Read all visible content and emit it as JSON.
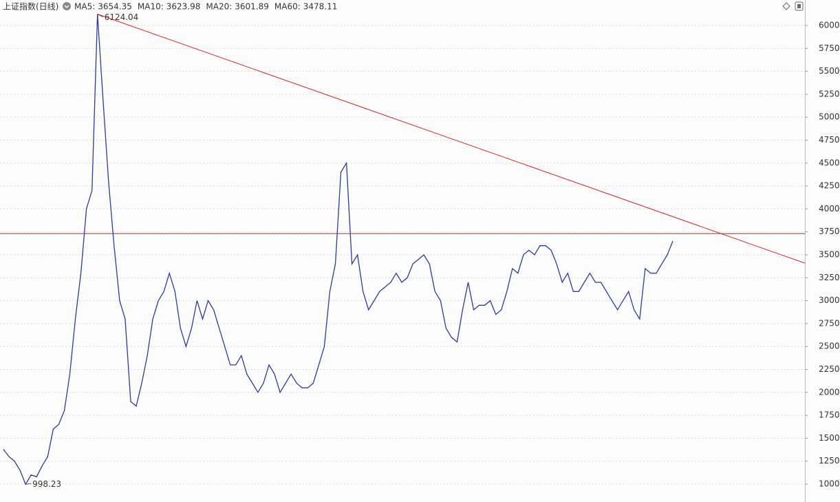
{
  "chart_data": {
    "type": "line",
    "title": "上证指数(日线)",
    "indicators": [
      {
        "name": "MA5:",
        "value": 3654.35,
        "color": "#333333"
      },
      {
        "name": "MA10:",
        "value": 3623.98,
        "color": "#1e7fc0"
      },
      {
        "name": "MA20:",
        "value": 3601.89,
        "color": "#9c1f96"
      },
      {
        "name": "MA60:",
        "value": 3478.11,
        "color": "#888888"
      }
    ],
    "series": [
      {
        "color": "#2b3a9a",
        "values": [
          1380,
          1300,
          1250,
          1150,
          998.23,
          1100,
          1080,
          1200,
          1300,
          1600,
          1650,
          1800,
          2200,
          2800,
          3300,
          4000,
          4200,
          6124.04,
          5200,
          4300,
          3600,
          3000,
          2800,
          1900,
          1850,
          2100,
          2400,
          2800,
          3000,
          3100,
          3300,
          3100,
          2700,
          2500,
          2700,
          3000,
          2800,
          3000,
          2900,
          2700,
          2500,
          2300,
          2300,
          2400,
          2200,
          2100,
          2000,
          2100,
          2300,
          2200,
          2000,
          2100,
          2200,
          2100,
          2050,
          2050,
          2100,
          2300,
          2500,
          3100,
          3400,
          4400,
          4500,
          3400,
          3500,
          3100,
          2900,
          3000,
          3100,
          3150,
          3200,
          3300,
          3200,
          3250,
          3400,
          3450,
          3500,
          3400,
          3100,
          3000,
          2700,
          2600,
          2550,
          2900,
          3200,
          2900,
          2950,
          2950,
          3000,
          2850,
          2900,
          3100,
          3350,
          3300,
          3500,
          3550,
          3500,
          3600,
          3600,
          3550,
          3400,
          3200,
          3300,
          3100,
          3100,
          3200,
          3300,
          3200,
          3200,
          3100,
          3000,
          2900,
          3000,
          3100,
          2900,
          2800,
          3350,
          3300,
          3300,
          3400,
          3500,
          3650
        ]
      }
    ],
    "annotations": [
      {
        "text": "6124.04",
        "value": 6124.04
      },
      {
        "text": "998.23",
        "value": 998.23
      }
    ],
    "resistance_line": {
      "value": 3731,
      "color": "#d42020"
    },
    "trend_line": {
      "start": 6124.04,
      "end": 3409,
      "color": "#d42020"
    },
    "ylim": [
      805,
      6278
    ],
    "yticks": [
      1000,
      1250,
      1500,
      1750,
      2000,
      2250,
      2500,
      2750,
      3000,
      3250,
      3500,
      3750,
      4000,
      4250,
      4500,
      4750,
      5000,
      5250,
      5500,
      5750,
      6000
    ],
    "grid": true
  }
}
